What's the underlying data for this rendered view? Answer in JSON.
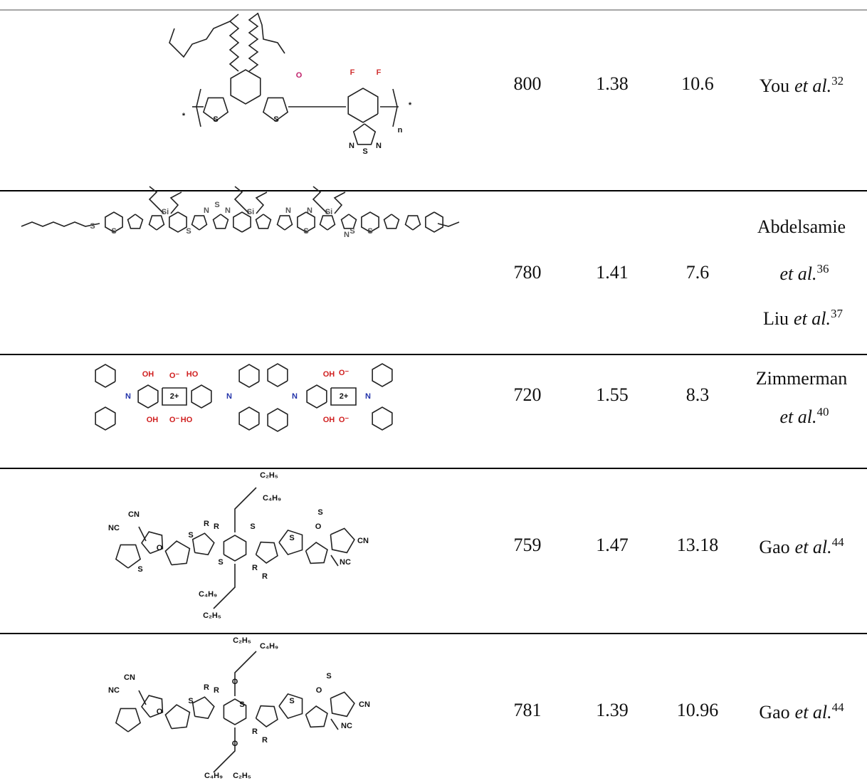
{
  "table": {
    "rows": [
      {
        "structure_labels": [
          "O",
          "F",
          "F",
          "S",
          "S",
          "N",
          "S",
          "N",
          "n",
          "*",
          "*"
        ],
        "wavelength": 800,
        "value_2": 1.38,
        "value_3": 10.6,
        "references": [
          {
            "author": "You",
            "etal": "et al.",
            "ref": 32
          }
        ]
      },
      {
        "structure_labels": [
          "S",
          "S",
          "Si",
          "S",
          "N",
          "S",
          "N",
          "Si",
          "N",
          "S",
          "N",
          "Si",
          "S",
          "S",
          "N"
        ],
        "wavelength": 780,
        "value_2": 1.41,
        "value_3": 7.6,
        "references": [
          {
            "author": "Abdelsamie",
            "etal": "et al.",
            "ref": 36
          },
          {
            "author": "Liu",
            "etal": "et al.",
            "ref": 37
          }
        ]
      },
      {
        "structure_labels": [
          "N",
          "OH",
          "OH",
          "O⁻",
          "O⁻",
          "2+",
          "HO",
          "HO",
          "N",
          "N",
          "OH",
          "OH",
          "O⁻",
          "O⁻",
          "2+",
          "N"
        ],
        "wavelength": 720,
        "value_2": 1.55,
        "value_3": 8.3,
        "references": [
          {
            "author": "Zimmerman",
            "etal": "et al.",
            "ref": 40
          }
        ]
      },
      {
        "structure_labels": [
          "C₂H₅",
          "C₄H₉",
          "R",
          "R",
          "CN",
          "NC",
          "O",
          "S",
          "S",
          "S",
          "S",
          "S",
          "R",
          "R",
          "O",
          "CN",
          "NC",
          "S",
          "C₄H₉",
          "C₂H₅"
        ],
        "wavelength": 759,
        "value_2": 1.47,
        "value_3": 13.18,
        "references": [
          {
            "author": "Gao",
            "etal": "et al.",
            "ref": 44
          }
        ]
      },
      {
        "structure_labels": [
          "C₂H₅",
          "C₄H₉",
          "R",
          "R",
          "CN",
          "NC",
          "O",
          "O",
          "S",
          "S",
          "S",
          "R",
          "R",
          "O",
          "O",
          "CN",
          "NC",
          "S",
          "C₄H₉",
          "C₂H₅"
        ],
        "wavelength": 781,
        "value_2": 1.39,
        "value_3": 10.96,
        "references": [
          {
            "author": "Gao",
            "etal": "et al.",
            "ref": 44
          }
        ]
      }
    ]
  }
}
